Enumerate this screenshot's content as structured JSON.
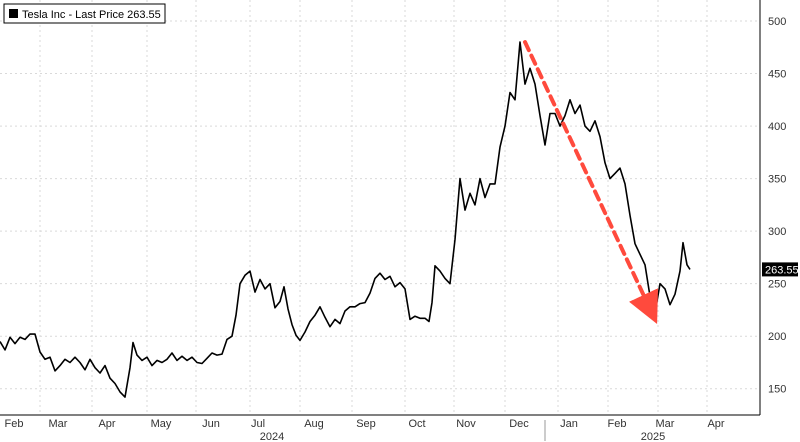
{
  "chart_data": {
    "type": "line",
    "legend": {
      "label": "Tesla Inc - Last Price 263.55",
      "position": "top-left"
    },
    "last_price_label": "263.55",
    "ylim": [
      125,
      520
    ],
    "y_ticks": [
      150,
      200,
      250,
      300,
      350,
      400,
      450,
      500
    ],
    "y_tick_labels": [
      "150",
      "200",
      "250",
      "300",
      "350",
      "400",
      "450",
      "500"
    ],
    "x_tick_labels": [
      "Feb",
      "Mar",
      "Apr",
      "May",
      "Jun",
      "Jul",
      "Aug",
      "Sep",
      "Oct",
      "Nov",
      "Dec",
      "Jan",
      "Feb",
      "Mar",
      "Apr"
    ],
    "year_labels": [
      "2024",
      "2025"
    ],
    "grid": true,
    "line_color": "#000000",
    "arrow_color": "#ff4a3d",
    "series": [
      {
        "values": [
          [
            0,
            195
          ],
          [
            5,
            187
          ],
          [
            10,
            199
          ],
          [
            15,
            193
          ],
          [
            20,
            199
          ],
          [
            25,
            197
          ],
          [
            30,
            202
          ],
          [
            35,
            202
          ],
          [
            40,
            185
          ],
          [
            45,
            178
          ],
          [
            50,
            180
          ],
          [
            55,
            167
          ],
          [
            60,
            172
          ],
          [
            65,
            178
          ],
          [
            70,
            175
          ],
          [
            75,
            180
          ],
          [
            80,
            175
          ],
          [
            85,
            168
          ],
          [
            90,
            178
          ],
          [
            95,
            170
          ],
          [
            100,
            165
          ],
          [
            105,
            172
          ],
          [
            110,
            160
          ],
          [
            115,
            155
          ],
          [
            120,
            147
          ],
          [
            125,
            142
          ],
          [
            130,
            170
          ],
          [
            133,
            194
          ],
          [
            137,
            182
          ],
          [
            142,
            177
          ],
          [
            147,
            180
          ],
          [
            152,
            172
          ],
          [
            157,
            177
          ],
          [
            162,
            175
          ],
          [
            167,
            178
          ],
          [
            172,
            184
          ],
          [
            177,
            177
          ],
          [
            182,
            181
          ],
          [
            187,
            177
          ],
          [
            192,
            180
          ],
          [
            197,
            175
          ],
          [
            202,
            174
          ],
          [
            207,
            179
          ],
          [
            212,
            184
          ],
          [
            217,
            182
          ],
          [
            222,
            183
          ],
          [
            227,
            197
          ],
          [
            232,
            200
          ],
          [
            236,
            220
          ],
          [
            240,
            250
          ],
          [
            245,
            258
          ],
          [
            250,
            262
          ],
          [
            255,
            242
          ],
          [
            260,
            254
          ],
          [
            265,
            245
          ],
          [
            270,
            250
          ],
          [
            275,
            227
          ],
          [
            280,
            233
          ],
          [
            284,
            247
          ],
          [
            288,
            226
          ],
          [
            292,
            211
          ],
          [
            296,
            201
          ],
          [
            300,
            196
          ],
          [
            305,
            204
          ],
          [
            310,
            214
          ],
          [
            315,
            220
          ],
          [
            320,
            228
          ],
          [
            325,
            218
          ],
          [
            330,
            209
          ],
          [
            335,
            216
          ],
          [
            340,
            212
          ],
          [
            345,
            224
          ],
          [
            350,
            228
          ],
          [
            355,
            228
          ],
          [
            360,
            231
          ],
          [
            365,
            232
          ],
          [
            370,
            241
          ],
          [
            375,
            255
          ],
          [
            380,
            260
          ],
          [
            385,
            254
          ],
          [
            390,
            257
          ],
          [
            395,
            247
          ],
          [
            400,
            251
          ],
          [
            405,
            245
          ],
          [
            410,
            216
          ],
          [
            415,
            219
          ],
          [
            420,
            217
          ],
          [
            425,
            217
          ],
          [
            429,
            214
          ],
          [
            432,
            232
          ],
          [
            435,
            267
          ],
          [
            440,
            262
          ],
          [
            445,
            255
          ],
          [
            450,
            250
          ],
          [
            455,
            292
          ],
          [
            460,
            350
          ],
          [
            465,
            320
          ],
          [
            470,
            336
          ],
          [
            475,
            325
          ],
          [
            480,
            350
          ],
          [
            485,
            332
          ],
          [
            490,
            345
          ],
          [
            495,
            345
          ],
          [
            500,
            380
          ],
          [
            505,
            400
          ],
          [
            510,
            432
          ],
          [
            515,
            425
          ],
          [
            520,
            480
          ],
          [
            525,
            440
          ],
          [
            530,
            455
          ],
          [
            535,
            440
          ],
          [
            540,
            410
          ],
          [
            545,
            382
          ],
          [
            550,
            412
          ],
          [
            555,
            412
          ],
          [
            560,
            400
          ],
          [
            565,
            410
          ],
          [
            570,
            425
          ],
          [
            575,
            412
          ],
          [
            580,
            420
          ],
          [
            585,
            400
          ],
          [
            590,
            395
          ],
          [
            595,
            405
          ],
          [
            600,
            390
          ],
          [
            605,
            365
          ],
          [
            610,
            350
          ],
          [
            615,
            355
          ],
          [
            620,
            360
          ],
          [
            625,
            345
          ],
          [
            630,
            315
          ],
          [
            635,
            288
          ],
          [
            640,
            278
          ],
          [
            645,
            268
          ],
          [
            650,
            238
          ],
          [
            655,
            222
          ],
          [
            660,
            250
          ],
          [
            665,
            245
          ],
          [
            670,
            230
          ],
          [
            675,
            240
          ],
          [
            680,
            262
          ],
          [
            683,
            289
          ],
          [
            687,
            268
          ],
          [
            690,
            263.55
          ]
        ]
      }
    ],
    "annotations": [
      {
        "type": "arrow",
        "from": [
          525,
          480
        ],
        "to": [
          652,
          222
        ]
      }
    ]
  }
}
